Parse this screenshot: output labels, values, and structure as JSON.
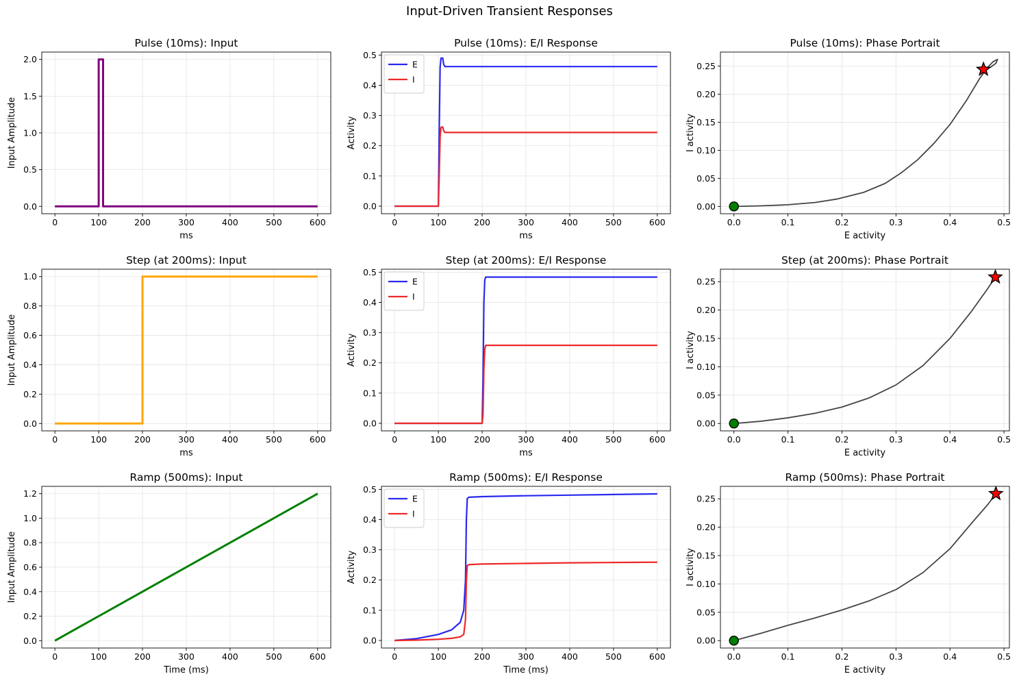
{
  "figure": {
    "title": "Input-Driven Transient Responses"
  },
  "chart_data": [
    {
      "type": "line",
      "title": "Pulse (10ms): Input",
      "xlabel": "ms",
      "ylabel": "Input Amplitude",
      "xlim": [
        -30,
        630
      ],
      "ylim": [
        -0.1,
        2.1
      ],
      "xticks": [
        0,
        100,
        200,
        300,
        400,
        500,
        600
      ],
      "yticks": [
        0.0,
        0.5,
        1.0,
        1.5,
        2.0
      ],
      "grid": true,
      "series": [
        {
          "color": "#800080",
          "width": 3,
          "x": [
            0,
            100,
            100,
            110,
            110,
            600
          ],
          "y": [
            0,
            0,
            2.0,
            2.0,
            0,
            0
          ]
        }
      ]
    },
    {
      "type": "line",
      "title": "Pulse (10ms): E/I Response",
      "xlabel": "ms",
      "ylabel": "Activity",
      "xlim": [
        -30,
        630
      ],
      "ylim": [
        -0.025,
        0.51
      ],
      "xticks": [
        0,
        100,
        200,
        300,
        400,
        500,
        600
      ],
      "yticks": [
        0.0,
        0.1,
        0.2,
        0.3,
        0.4,
        0.5
      ],
      "grid": true,
      "legend": "upper-left",
      "series": [
        {
          "name": "E",
          "color": "#2828ee",
          "width": 2.2,
          "x": [
            0,
            100,
            102,
            104,
            106,
            108,
            110,
            112,
            115,
            600
          ],
          "y": [
            0,
            0,
            0.25,
            0.46,
            0.49,
            0.49,
            0.49,
            0.47,
            0.462,
            0.462
          ]
        },
        {
          "name": "I",
          "color": "#ee2828",
          "width": 2.2,
          "x": [
            0,
            100,
            102,
            104,
            106,
            108,
            110,
            112,
            115,
            600
          ],
          "y": [
            0,
            0,
            0.1,
            0.23,
            0.26,
            0.262,
            0.262,
            0.25,
            0.244,
            0.244
          ]
        }
      ]
    },
    {
      "type": "line",
      "title": "Pulse (10ms): Phase Portrait",
      "xlabel": "E activity",
      "ylabel": "I activity",
      "xlim": [
        -0.025,
        0.51
      ],
      "ylim": [
        -0.013,
        0.275
      ],
      "xticks": [
        0.0,
        0.1,
        0.2,
        0.3,
        0.4,
        0.5
      ],
      "yticks": [
        0.0,
        0.05,
        0.1,
        0.15,
        0.2,
        0.25
      ],
      "grid": true,
      "series": [
        {
          "color": "#444444",
          "width": 1.8,
          "x": [
            0,
            0.05,
            0.1,
            0.15,
            0.19,
            0.24,
            0.28,
            0.31,
            0.34,
            0.37,
            0.4,
            0.43,
            0.455,
            0.47,
            0.48,
            0.488,
            0.485,
            0.475,
            0.462
          ],
          "y": [
            0,
            0.001,
            0.003,
            0.007,
            0.013,
            0.025,
            0.041,
            0.06,
            0.083,
            0.112,
            0.146,
            0.188,
            0.228,
            0.248,
            0.258,
            0.262,
            0.255,
            0.248,
            0.244
          ]
        }
      ],
      "start_point": {
        "x": 0,
        "y": 0,
        "color": "#008000"
      },
      "end_point": {
        "x": 0.462,
        "y": 0.244,
        "color": "#ff0000"
      }
    },
    {
      "type": "line",
      "title": "Step (at 200ms): Input",
      "xlabel": "ms",
      "ylabel": "Input Amplitude",
      "xlim": [
        -30,
        630
      ],
      "ylim": [
        -0.05,
        1.05
      ],
      "xticks": [
        0,
        100,
        200,
        300,
        400,
        500,
        600
      ],
      "yticks": [
        0.0,
        0.2,
        0.4,
        0.6,
        0.8,
        1.0
      ],
      "grid": true,
      "series": [
        {
          "color": "#ffa500",
          "width": 3,
          "x": [
            0,
            200,
            200,
            600
          ],
          "y": [
            0,
            0,
            1.0,
            1.0
          ]
        }
      ]
    },
    {
      "type": "line",
      "title": "Step (at 200ms): E/I Response",
      "xlabel": "ms",
      "ylabel": "Activity",
      "xlim": [
        -30,
        630
      ],
      "ylim": [
        -0.025,
        0.51
      ],
      "xticks": [
        0,
        100,
        200,
        300,
        400,
        500,
        600
      ],
      "yticks": [
        0.0,
        0.1,
        0.2,
        0.3,
        0.4,
        0.5
      ],
      "grid": true,
      "legend": "upper-left",
      "series": [
        {
          "name": "E",
          "color": "#2828ee",
          "width": 2.2,
          "x": [
            0,
            200,
            202,
            204,
            206,
            208,
            600
          ],
          "y": [
            0,
            0,
            0.15,
            0.4,
            0.475,
            0.484,
            0.484
          ]
        },
        {
          "name": "I",
          "color": "#ee2828",
          "width": 2.2,
          "x": [
            0,
            200,
            202,
            204,
            206,
            208,
            600
          ],
          "y": [
            0,
            0,
            0.03,
            0.18,
            0.245,
            0.258,
            0.258
          ]
        }
      ]
    },
    {
      "type": "line",
      "title": "Step (at 200ms): Phase Portrait",
      "xlabel": "E activity",
      "ylabel": "I activity",
      "xlim": [
        -0.025,
        0.51
      ],
      "ylim": [
        -0.013,
        0.272
      ],
      "xticks": [
        0.0,
        0.1,
        0.2,
        0.3,
        0.4,
        0.5
      ],
      "yticks": [
        0.0,
        0.05,
        0.1,
        0.15,
        0.2,
        0.25
      ],
      "grid": true,
      "series": [
        {
          "color": "#444444",
          "width": 1.8,
          "x": [
            0,
            0.05,
            0.1,
            0.15,
            0.2,
            0.25,
            0.3,
            0.35,
            0.4,
            0.44,
            0.47,
            0.484
          ],
          "y": [
            0,
            0.004,
            0.01,
            0.018,
            0.029,
            0.045,
            0.068,
            0.102,
            0.15,
            0.198,
            0.238,
            0.258
          ]
        }
      ],
      "start_point": {
        "x": 0,
        "y": 0,
        "color": "#008000"
      },
      "end_point": {
        "x": 0.484,
        "y": 0.258,
        "color": "#ff0000"
      }
    },
    {
      "type": "line",
      "title": "Ramp (500ms): Input",
      "xlabel": "Time (ms)",
      "ylabel": "Input Amplitude",
      "xlim": [
        -30,
        630
      ],
      "ylim": [
        -0.06,
        1.26
      ],
      "xticks": [
        0,
        100,
        200,
        300,
        400,
        500,
        600
      ],
      "yticks": [
        0.0,
        0.2,
        0.4,
        0.6,
        0.8,
        1.0,
        1.2
      ],
      "grid": true,
      "series": [
        {
          "color": "#008000",
          "width": 3,
          "x": [
            0,
            600
          ],
          "y": [
            0,
            1.2
          ]
        }
      ]
    },
    {
      "type": "line",
      "title": "Ramp (500ms): E/I Response",
      "xlabel": "Time (ms)",
      "ylabel": "Activity",
      "xlim": [
        -30,
        630
      ],
      "ylim": [
        -0.025,
        0.51
      ],
      "xticks": [
        0,
        100,
        200,
        300,
        400,
        500,
        600
      ],
      "yticks": [
        0.0,
        0.1,
        0.2,
        0.3,
        0.4,
        0.5
      ],
      "grid": true,
      "legend": "upper-left",
      "series": [
        {
          "name": "E",
          "color": "#2828ee",
          "width": 2.2,
          "x": [
            0,
            50,
            100,
            130,
            150,
            158,
            162,
            164,
            166,
            170,
            200,
            300,
            400,
            500,
            600
          ],
          "y": [
            0,
            0.006,
            0.02,
            0.035,
            0.06,
            0.1,
            0.2,
            0.4,
            0.47,
            0.474,
            0.476,
            0.479,
            0.481,
            0.483,
            0.485
          ]
        },
        {
          "name": "I",
          "color": "#ee2828",
          "width": 2.2,
          "x": [
            0,
            50,
            100,
            130,
            150,
            158,
            162,
            164,
            166,
            170,
            200,
            300,
            400,
            500,
            600
          ],
          "y": [
            0,
            0.001,
            0.004,
            0.007,
            0.012,
            0.02,
            0.07,
            0.2,
            0.248,
            0.251,
            0.253,
            0.255,
            0.257,
            0.258,
            0.259
          ]
        }
      ]
    },
    {
      "type": "line",
      "title": "Ramp (500ms): Phase Portrait",
      "xlabel": "E activity",
      "ylabel": "I activity",
      "xlim": [
        -0.025,
        0.51
      ],
      "ylim": [
        -0.013,
        0.272
      ],
      "xticks": [
        0.0,
        0.1,
        0.2,
        0.3,
        0.4,
        0.5
      ],
      "yticks": [
        0.0,
        0.05,
        0.1,
        0.15,
        0.2,
        0.25
      ],
      "grid": true,
      "series": [
        {
          "color": "#444444",
          "width": 1.8,
          "x": [
            0,
            0.05,
            0.1,
            0.15,
            0.2,
            0.25,
            0.3,
            0.35,
            0.4,
            0.44,
            0.47,
            0.485
          ],
          "y": [
            0,
            0.013,
            0.027,
            0.04,
            0.054,
            0.07,
            0.09,
            0.12,
            0.162,
            0.207,
            0.24,
            0.259
          ]
        }
      ],
      "start_point": {
        "x": 0,
        "y": 0,
        "color": "#008000"
      },
      "end_point": {
        "x": 0.485,
        "y": 0.259,
        "color": "#ff0000"
      }
    }
  ]
}
